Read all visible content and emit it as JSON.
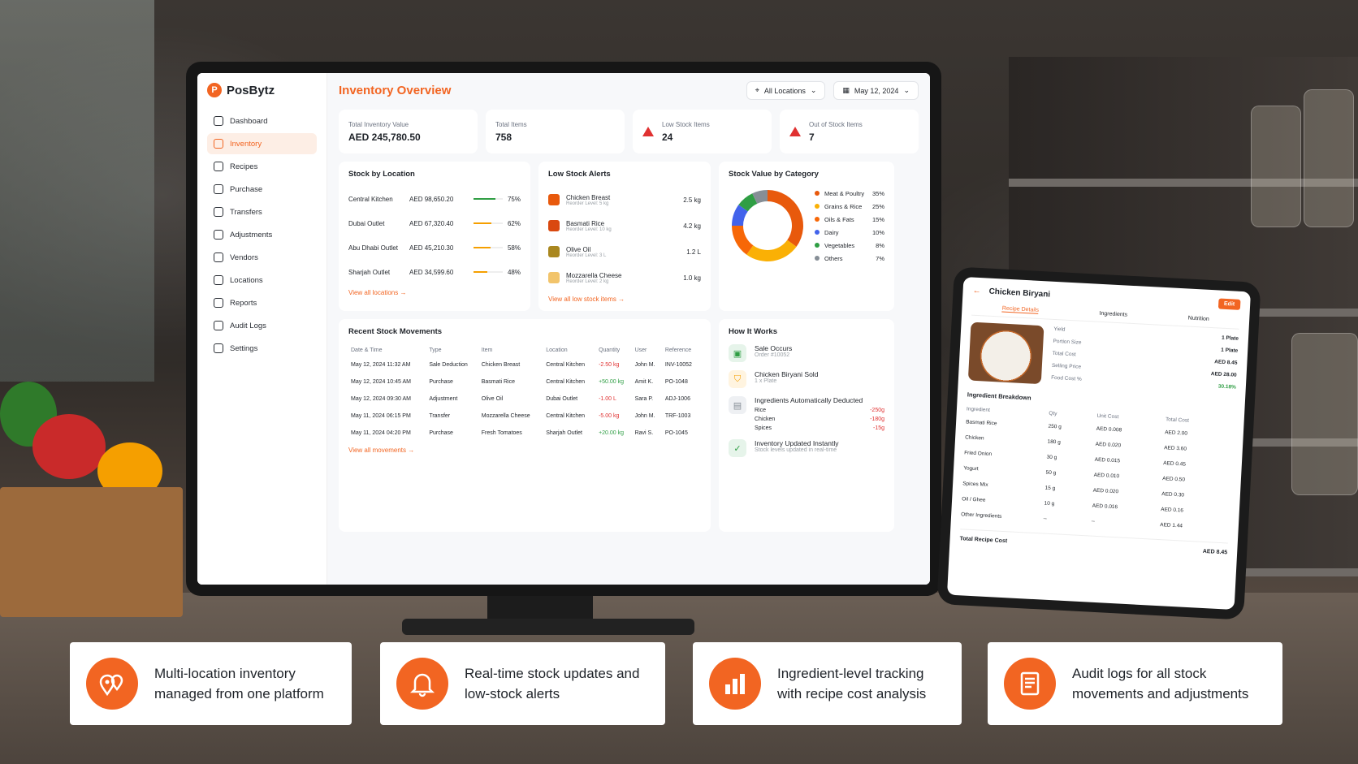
{
  "brand": {
    "name": "PosBytz",
    "mark": "P",
    "accent": "#f26522"
  },
  "sidebar": {
    "items": [
      {
        "label": "Dashboard",
        "icon": "home-icon"
      },
      {
        "label": "Inventory",
        "icon": "box-icon",
        "active": true
      },
      {
        "label": "Recipes",
        "icon": "book-icon"
      },
      {
        "label": "Purchase",
        "icon": "cart-icon"
      },
      {
        "label": "Transfers",
        "icon": "arrows-icon"
      },
      {
        "label": "Adjustments",
        "icon": "sliders-icon"
      },
      {
        "label": "Vendors",
        "icon": "store-icon"
      },
      {
        "label": "Locations",
        "icon": "pin-icon"
      },
      {
        "label": "Reports",
        "icon": "chart-icon"
      },
      {
        "label": "Audit Logs",
        "icon": "clipboard-icon"
      },
      {
        "label": "Settings",
        "icon": "gear-icon"
      }
    ]
  },
  "header": {
    "title": "Inventory Overview",
    "location": "All Locations",
    "date": "May 12, 2024"
  },
  "kpis": [
    {
      "label": "Total Inventory Value",
      "value": "AED 245,780.50"
    },
    {
      "label": "Total Items",
      "value": "758"
    },
    {
      "label": "Low Stock Items",
      "value": "24"
    },
    {
      "label": "Out of Stock Items",
      "value": "7"
    }
  ],
  "stock_by_location": {
    "title": "Stock by Location",
    "rows": [
      {
        "name": "Central Kitchen",
        "value": "AED 98,650.20",
        "pct": "75%",
        "fill": 0.75,
        "color": "#2f9e44"
      },
      {
        "name": "Dubai Outlet",
        "value": "AED 67,320.40",
        "pct": "62%",
        "fill": 0.62,
        "color": "#f59f00"
      },
      {
        "name": "Abu Dhabi Outlet",
        "value": "AED 45,210.30",
        "pct": "58%",
        "fill": 0.58,
        "color": "#f59f00"
      },
      {
        "name": "Sharjah Outlet",
        "value": "AED 34,599.60",
        "pct": "48%",
        "fill": 0.48,
        "color": "#f59f00"
      }
    ],
    "link": "View all locations →"
  },
  "low_stock": {
    "title": "Low Stock Alerts",
    "rows": [
      {
        "name": "Chicken Breast",
        "sub": "Reorder Level: 5 kg",
        "qty": "2.5 kg",
        "color": "#e8590c"
      },
      {
        "name": "Basmati Rice",
        "sub": "Reorder Level: 10 kg",
        "qty": "4.2 kg",
        "color": "#d9480f"
      },
      {
        "name": "Olive Oil",
        "sub": "Reorder Level: 3 L",
        "qty": "1.2 L",
        "color": "#a9871f"
      },
      {
        "name": "Mozzarella Cheese",
        "sub": "Reorder Level: 2 kg",
        "qty": "1.0 kg",
        "color": "#f2c46b"
      }
    ],
    "link": "View all low stock items →"
  },
  "chart_data": {
    "type": "pie",
    "title": "Stock Value by Category",
    "categories": [
      "Meat & Poultry",
      "Grains & Rice",
      "Oils & Fats",
      "Dairy",
      "Vegetables",
      "Others"
    ],
    "values": [
      35,
      25,
      15,
      10,
      8,
      7
    ],
    "labels": [
      "35%",
      "25%",
      "15%",
      "10%",
      "8%",
      "7%"
    ],
    "colors": [
      "#e8590c",
      "#fab005",
      "#f76707",
      "#4263eb",
      "#2f9e44",
      "#868e96"
    ],
    "legend": "right"
  },
  "movements": {
    "title": "Recent Stock Movements",
    "columns": [
      "Date & Time",
      "Type",
      "Item",
      "Location",
      "Quantity",
      "User",
      "Reference"
    ],
    "rows": [
      [
        "May 12, 2024 11:32 AM",
        "Sale Deduction",
        "Chicken Breast",
        "Central Kitchen",
        "-2.50 kg",
        "John M.",
        "INV-10052"
      ],
      [
        "May 12, 2024 10:45 AM",
        "Purchase",
        "Basmati Rice",
        "Central Kitchen",
        "+50.00 kg",
        "Amit K.",
        "PO-1048"
      ],
      [
        "May 12, 2024 09:30 AM",
        "Adjustment",
        "Olive Oil",
        "Dubai Outlet",
        "-1.00 L",
        "Sara P.",
        "ADJ-1006"
      ],
      [
        "May 11, 2024 06:15 PM",
        "Transfer",
        "Mozzarella Cheese",
        "Central Kitchen",
        "-5.00 kg",
        "John M.",
        "TRF-1003"
      ],
      [
        "May 11, 2024 04:20 PM",
        "Purchase",
        "Fresh Tomatoes",
        "Sharjah Outlet",
        "+20.00 kg",
        "Ravi S.",
        "PO-1045"
      ]
    ],
    "link": "View all movements →"
  },
  "how_it_works": {
    "title": "How It Works",
    "steps": [
      {
        "title": "Sale Occurs",
        "sub": "Order #10052"
      },
      {
        "title": "Chicken Biryani Sold",
        "sub": "1 x Plate"
      },
      {
        "title": "Ingredients Automatically Deducted",
        "items": [
          [
            "Rice",
            "-250g"
          ],
          [
            "Chicken",
            "-180g"
          ],
          [
            "Spices",
            "-15g"
          ]
        ]
      },
      {
        "title": "Inventory Updated Instantly",
        "sub": "Stock levels updated in real-time"
      }
    ]
  },
  "recipe": {
    "title": "Chicken Biryani",
    "edit": "Edit",
    "tabs": [
      "Recipe Details",
      "Ingredients",
      "Nutrition"
    ],
    "details": [
      [
        "Yield",
        "1 Plate"
      ],
      [
        "Portion Size",
        "1 Plate"
      ],
      [
        "Total Cost",
        "AED 8.45"
      ],
      [
        "Selling Price",
        "AED 28.00"
      ],
      [
        "Food Cost %",
        "30.18%"
      ]
    ],
    "breakdown_title": "Ingredient Breakdown",
    "columns": [
      "Ingredient",
      "Qty",
      "Unit Cost",
      "Total Cost"
    ],
    "rows": [
      [
        "Basmati Rice",
        "250 g",
        "AED 0.008",
        "AED 2.00"
      ],
      [
        "Chicken",
        "180 g",
        "AED 0.020",
        "AED 3.60"
      ],
      [
        "Fried Onion",
        "30 g",
        "AED 0.015",
        "AED 0.45"
      ],
      [
        "Yogurt",
        "50 g",
        "AED 0.010",
        "AED 0.50"
      ],
      [
        "Spices Mix",
        "15 g",
        "AED 0.020",
        "AED 0.30"
      ],
      [
        "Oil / Ghee",
        "10 g",
        "AED 0.016",
        "AED 0.16"
      ],
      [
        "Other Ingredients",
        "--",
        "--",
        "AED 1.44"
      ]
    ],
    "total_label": "Total Recipe Cost",
    "total_value": "AED 8.45"
  },
  "features": [
    {
      "text": "Multi-location inventory managed from one platform",
      "icon": "map-pins-icon"
    },
    {
      "text": "Real-time stock updates and low-stock alerts",
      "icon": "bell-icon"
    },
    {
      "text": "Ingredient-level tracking with recipe cost analysis",
      "icon": "bar-chart-icon"
    },
    {
      "text": "Audit logs for all stock movements and adjustments",
      "icon": "document-icon"
    }
  ]
}
